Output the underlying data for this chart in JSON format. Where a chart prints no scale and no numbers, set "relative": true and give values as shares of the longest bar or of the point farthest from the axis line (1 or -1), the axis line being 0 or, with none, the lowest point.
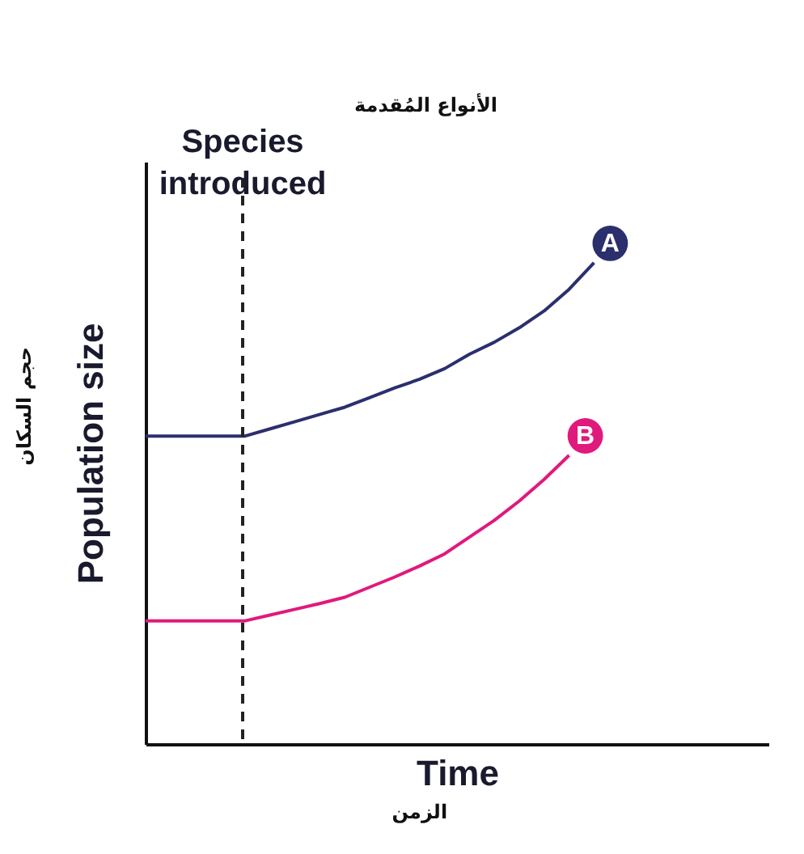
{
  "chart_data": {
    "type": "line",
    "relative": true,
    "xlabel": "Time",
    "ylabel": "Population size",
    "tick_labels": false,
    "marker": "none",
    "line_style": "solid",
    "categories": [
      null,
      null,
      null,
      null,
      null,
      null,
      null,
      null,
      null,
      null,
      null,
      null,
      null,
      null,
      null,
      null,
      null,
      null,
      null,
      null,
      null,
      null,
      null,
      null,
      null,
      null
    ],
    "series": [
      {
        "name": "A",
        "color": "#2b2f6e",
        "values": [
          0.64,
          0.64,
          0.64,
          0.64,
          0.64,
          0.655,
          0.67,
          0.685,
          0.7,
          0.72,
          0.74,
          0.758,
          0.78,
          0.81,
          0.835,
          0.865,
          0.9,
          0.945,
          1.0,
          null,
          null,
          null,
          null,
          null,
          null,
          null
        ]
      },
      {
        "name": "B",
        "color": "#e0197d",
        "values": [
          0.256,
          0.256,
          0.256,
          0.256,
          0.256,
          0.268,
          0.28,
          0.292,
          0.305,
          0.326,
          0.347,
          0.37,
          0.395,
          0.43,
          0.465,
          0.505,
          0.55,
          0.6,
          null,
          null,
          null,
          null,
          null,
          null,
          null,
          null
        ]
      }
    ],
    "annotations": [
      "Species introduced",
      "الأنواع المُقدمة",
      "حجم السكان",
      "الزمن"
    ]
  }
}
